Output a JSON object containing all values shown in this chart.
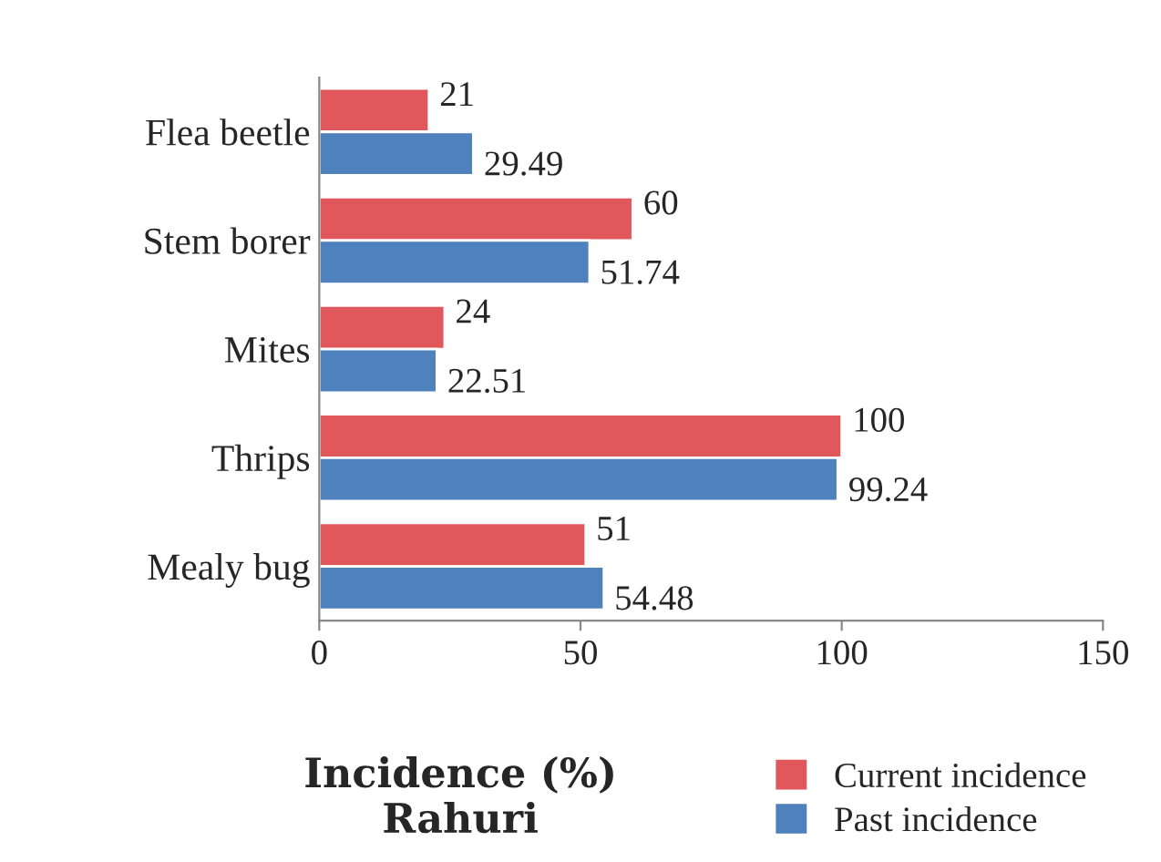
{
  "chart_data": {
    "type": "bar",
    "orientation": "horizontal",
    "xlabel": "Incidence (%)\nRahuri",
    "categories": [
      "Flea beetle",
      "Stem borer",
      "Mites",
      "Thrips",
      "Mealy bug"
    ],
    "series": [
      {
        "name": "Current incidence",
        "color": "#e0575c",
        "values": [
          21,
          60,
          24,
          100,
          51
        ]
      },
      {
        "name": "Past incidence",
        "color": "#4f81bd",
        "values": [
          29.49,
          51.74,
          22.51,
          99.24,
          54.48
        ]
      }
    ],
    "xlim": [
      0,
      150
    ],
    "xticks": [
      0,
      50,
      100,
      150
    ],
    "grid": false,
    "legend": "bottom right",
    "data_labels": true
  }
}
